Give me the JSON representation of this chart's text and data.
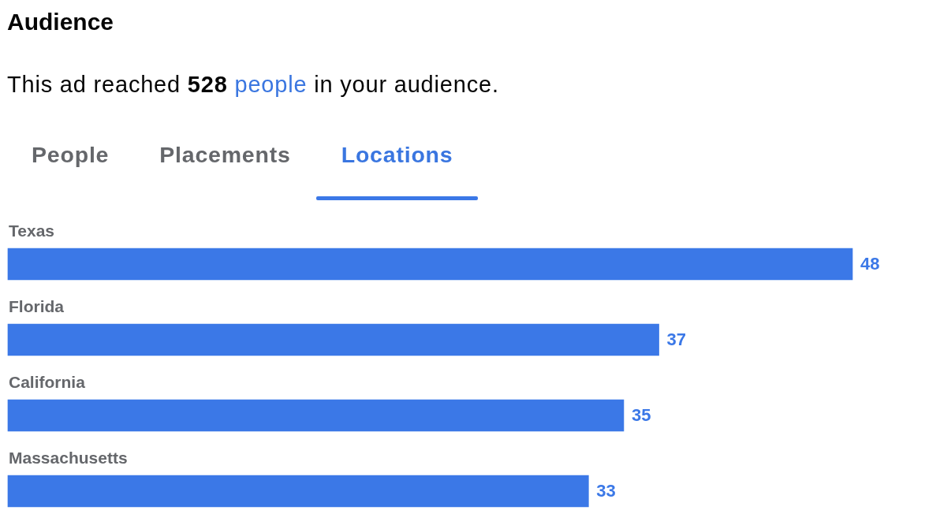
{
  "chart_data": {
    "type": "bar",
    "orientation": "horizontal",
    "title": "Audience",
    "subtitle": "This ad reached 528 people in your audience.",
    "annotations": [
      "People",
      "Placements",
      "Locations"
    ],
    "categories": [
      "Texas",
      "Florida",
      "California",
      "Massachusetts"
    ],
    "values": [
      48,
      37,
      35,
      33
    ],
    "color": "#3b78e7",
    "data_labels": true,
    "tick_labels": "y",
    "grid": false,
    "legend": false
  }
}
